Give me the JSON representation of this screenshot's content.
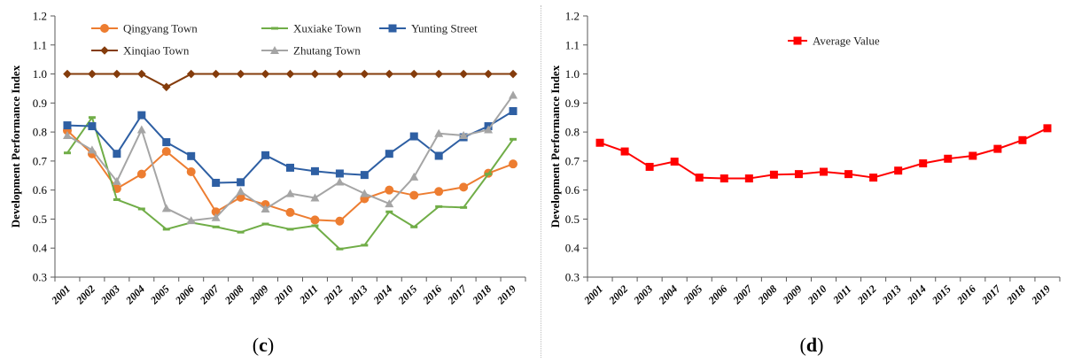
{
  "chart_data": [
    {
      "type": "line",
      "panel_label": "(c)",
      "title": "",
      "xlabel": "",
      "ylabel": "Development Performance Index",
      "ylim": [
        0.3,
        1.2
      ],
      "yticks": [
        "0.3",
        "0.4",
        "0.5",
        "0.6",
        "0.7",
        "0.8",
        "0.9",
        "1.0",
        "1.1",
        "1.2"
      ],
      "grid": false,
      "legend_placement": "top-left, inside plot",
      "categories": [
        "2001",
        "2002",
        "2003",
        "2004",
        "2005",
        "2006",
        "2007",
        "2008",
        "2009",
        "2010",
        "2011",
        "2012",
        "2013",
        "2014",
        "2015",
        "2016",
        "2017",
        "2018",
        "2019"
      ],
      "series": [
        {
          "name": "Qingyang Town",
          "color": "#ED7D31",
          "marker": "circle",
          "values": [
            0.805,
            0.725,
            0.605,
            0.655,
            0.733,
            0.663,
            0.525,
            0.575,
            0.55,
            0.523,
            0.497,
            0.493,
            0.57,
            0.6,
            0.582,
            0.595,
            0.61,
            0.658,
            0.69
          ]
        },
        {
          "name": "Xuxiake Town",
          "color": "#70AD47",
          "marker": "dash",
          "values": [
            0.728,
            0.85,
            0.567,
            0.535,
            0.465,
            0.488,
            0.473,
            0.455,
            0.483,
            0.465,
            0.477,
            0.397,
            0.41,
            0.525,
            0.473,
            0.543,
            0.54,
            0.655,
            0.775
          ]
        },
        {
          "name": "Yunting Street",
          "color": "#2E5FA3",
          "marker": "square",
          "values": [
            0.823,
            0.82,
            0.725,
            0.858,
            0.765,
            0.717,
            0.625,
            0.627,
            0.72,
            0.677,
            0.665,
            0.657,
            0.652,
            0.725,
            0.785,
            0.718,
            0.782,
            0.82,
            0.872
          ]
        },
        {
          "name": "Xinqiao Town",
          "color": "#843C0C",
          "marker": "diamond",
          "values": [
            1.0,
            1.0,
            1.0,
            1.0,
            0.955,
            1.0,
            1.0,
            1.0,
            1.0,
            1.0,
            1.0,
            1.0,
            1.0,
            1.0,
            1.0,
            1.0,
            1.0,
            1.0,
            1.0
          ]
        },
        {
          "name": "Zhutang Town",
          "color": "#A5A5A5",
          "marker": "triangle",
          "values": [
            0.788,
            0.738,
            0.63,
            0.808,
            0.537,
            0.495,
            0.505,
            0.595,
            0.535,
            0.588,
            0.573,
            0.628,
            0.588,
            0.553,
            0.645,
            0.795,
            0.788,
            0.808,
            0.927
          ]
        }
      ]
    },
    {
      "type": "line",
      "panel_label": "(d)",
      "title": "",
      "xlabel": "",
      "ylabel": "Development Performance Index",
      "ylim": [
        0.3,
        1.2
      ],
      "yticks": [
        "0.3",
        "0.4",
        "0.5",
        "0.6",
        "0.7",
        "0.8",
        "0.9",
        "1.0",
        "1.1",
        "1.2"
      ],
      "grid": false,
      "legend_placement": "top-left, inside plot",
      "categories": [
        "2001",
        "2002",
        "2003",
        "2004",
        "2005",
        "2006",
        "2007",
        "2008",
        "2009",
        "2010",
        "2011",
        "2012",
        "2013",
        "2014",
        "2015",
        "2016",
        "2017",
        "2018",
        "2019"
      ],
      "series": [
        {
          "name": "Average Value",
          "color": "#FF0000",
          "marker": "square",
          "values": [
            0.763,
            0.733,
            0.68,
            0.698,
            0.643,
            0.64,
            0.64,
            0.653,
            0.655,
            0.663,
            0.655,
            0.643,
            0.667,
            0.692,
            0.708,
            0.718,
            0.742,
            0.772,
            0.813
          ]
        }
      ]
    }
  ]
}
